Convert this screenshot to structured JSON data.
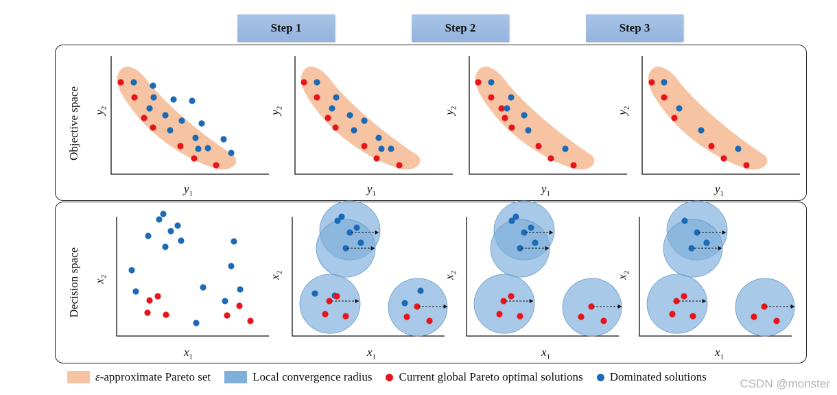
{
  "steps": [
    "Step 1",
    "Step 2",
    "Step 3"
  ],
  "rows": {
    "objective_label": "Objective space",
    "decision_label": "Decision space"
  },
  "axes": {
    "objective": {
      "x_var": "y",
      "x_sub": "1",
      "y_var": "y",
      "y_sub": "2"
    },
    "decision": {
      "x_var": "x",
      "x_sub": "1",
      "y_var": "x",
      "y_sub": "2"
    }
  },
  "legend": {
    "pareto_set_prefix": "ε",
    "pareto_set_label": "-approximate Pareto set",
    "radius_label": "Local convergence radius",
    "optimal_label": "Current global Pareto optimal solutions",
    "dominated_label": "Dominated solutions"
  },
  "colors": {
    "pareto_set": "#f6c4a2",
    "radius": "#7fafdb",
    "optimal": "#e8141b",
    "dominated": "#1b6ab5",
    "step_tab": "#9dbbe2"
  },
  "watermark": "CSDN @monster"
}
